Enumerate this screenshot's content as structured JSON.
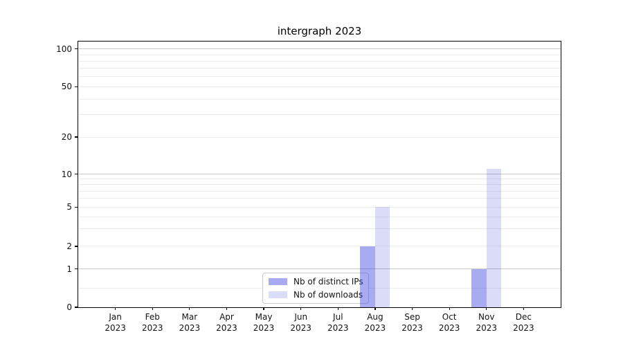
{
  "chart_data": {
    "type": "bar",
    "title": "intergraph 2023",
    "categories": [
      "Jan",
      "Feb",
      "Mar",
      "Apr",
      "May",
      "Jun",
      "Jul",
      "Aug",
      "Sep",
      "Oct",
      "Nov",
      "Dec"
    ],
    "category_year": "2023",
    "series": [
      {
        "name": "Nb of distinct IPs",
        "values": [
          0,
          0,
          0,
          0,
          0,
          0,
          0,
          2,
          0,
          0,
          1,
          0
        ],
        "color": "#a8abf1",
        "fill": "rgba(62,68,224,0.45)"
      },
      {
        "name": "Nb of downloads",
        "values": [
          0,
          0,
          0,
          0,
          0,
          0,
          0,
          5,
          0,
          0,
          11,
          0
        ],
        "color": "#dbdcf8",
        "fill": "rgba(30,36,211,0.16)"
      }
    ],
    "xlabel": "",
    "ylabel": "",
    "y_axis": {
      "scale": "quasi-log",
      "ticks": [
        0,
        1,
        2,
        5,
        10,
        20,
        50,
        100
      ],
      "major_gridlines": [
        1,
        10,
        100
      ],
      "minor_gridlines": [
        0.5,
        3,
        4,
        6,
        7,
        8,
        9,
        30,
        40,
        60,
        70,
        80,
        90
      ],
      "anchors": [
        [
          0,
          0
        ],
        [
          1,
          0.1445
        ],
        [
          2,
          0.2292
        ],
        [
          5,
          0.3768
        ],
        [
          10,
          0.5013
        ],
        [
          20,
          0.6406
        ],
        [
          50,
          0.8299
        ],
        [
          100,
          0.9721
        ]
      ]
    },
    "legend": {
      "location": "lower center",
      "items": [
        "Nb of distinct IPs",
        "Nb of downloads"
      ]
    },
    "grid": true,
    "bar_width_fraction": 0.4
  },
  "style": {
    "background": "#ffffff",
    "spine_color": "#000000",
    "text_color": "#111111",
    "grid_major_color": "#c6c6c6",
    "grid_minor_color": "#ececec",
    "legend_border_color": "#c9c9c9"
  }
}
